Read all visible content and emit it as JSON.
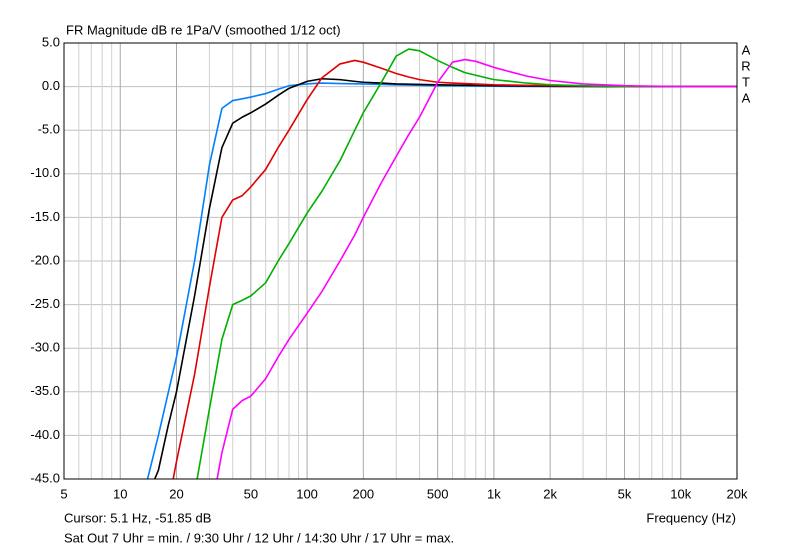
{
  "chart_data": {
    "type": "line",
    "title": "FR Magnitude dB re 1Pa/V (smoothed 1/12 oct)",
    "side_label": [
      "A",
      "R",
      "T",
      "A"
    ],
    "x_label": "Frequency (Hz)",
    "cursor_text": "Cursor: 5.1 Hz, -51.85 dB",
    "note": "Sat Out 7 Uhr = min. / 9:30 Uhr / 12 Uhr / 14:30 Uhr / 17 Uhr = max.",
    "x_log": true,
    "grid": true,
    "xlim": [
      5,
      20000
    ],
    "xticks": [
      5,
      10,
      20,
      50,
      100,
      200,
      500,
      {
        "value": 1000,
        "label": "1k"
      },
      {
        "value": 2000,
        "label": "2k"
      },
      {
        "value": 5000,
        "label": "5k"
      },
      {
        "value": 10000,
        "label": "10k"
      },
      {
        "value": 20000,
        "label": "20k"
      }
    ],
    "x_minor_gridlines": [
      6,
      7,
      8,
      9,
      30,
      40,
      60,
      70,
      80,
      90,
      300,
      400,
      600,
      700,
      800,
      900,
      3000,
      4000,
      6000,
      7000,
      8000,
      9000
    ],
    "ylim": [
      -45,
      5
    ],
    "yticks": [
      {
        "value": 5,
        "label": "5.0"
      },
      {
        "value": 0,
        "label": "0.0"
      },
      {
        "value": -5,
        "label": "-5.0"
      },
      {
        "value": -10,
        "label": "-10.0"
      },
      {
        "value": -15,
        "label": "-15.0"
      },
      {
        "value": -20,
        "label": "-20.0"
      },
      {
        "value": -25,
        "label": "-25.0"
      },
      {
        "value": -30,
        "label": "-30.0"
      },
      {
        "value": -35,
        "label": "-35.0"
      },
      {
        "value": -40,
        "label": "-40.0"
      },
      {
        "value": -45,
        "label": "-45.0"
      }
    ],
    "series": [
      {
        "color": "#0080ff",
        "x": [
          14,
          16,
          20,
          25,
          30,
          35,
          40,
          45,
          50,
          60,
          70,
          80,
          100,
          120,
          150,
          200,
          300,
          500,
          1000,
          2000,
          5000,
          20000
        ],
        "values": [
          -45,
          -40,
          -31,
          -20,
          -9,
          -2.5,
          -1.6,
          -1.4,
          -1.2,
          -0.8,
          -0.3,
          0.1,
          0.3,
          0.4,
          0.35,
          0.3,
          0.2,
          0.1,
          0.05,
          0,
          0,
          0
        ]
      },
      {
        "color": "#000000",
        "x": [
          15.3,
          16,
          18,
          20,
          25,
          30,
          35,
          40,
          45,
          50,
          60,
          70,
          80,
          100,
          120,
          150,
          180,
          200,
          250,
          300,
          500,
          1000,
          2000,
          5000,
          20000
        ],
        "values": [
          -45,
          -44,
          -39,
          -35,
          -24,
          -14,
          -7,
          -4.2,
          -3.5,
          -3,
          -2,
          -1,
          -0.2,
          0.6,
          0.9,
          0.8,
          0.6,
          0.5,
          0.4,
          0.3,
          0.2,
          0.1,
          0.05,
          0,
          0
        ]
      },
      {
        "color": "#e00000",
        "x": [
          19.2,
          20,
          25,
          30,
          35,
          40,
          45,
          50,
          60,
          70,
          80,
          100,
          120,
          150,
          180,
          200,
          250,
          300,
          350,
          400,
          500,
          600,
          1000,
          2000,
          5000,
          20000
        ],
        "values": [
          -45,
          -43,
          -33,
          -23,
          -15,
          -13,
          -12.5,
          -11.5,
          -9.5,
          -7,
          -5,
          -1.5,
          1,
          2.6,
          3,
          2.8,
          2.1,
          1.5,
          1.1,
          0.8,
          0.5,
          0.4,
          0.2,
          0.1,
          0,
          0
        ]
      },
      {
        "color": "#00b000",
        "x": [
          25.8,
          30,
          35,
          40,
          45,
          50,
          60,
          70,
          80,
          100,
          120,
          150,
          180,
          200,
          250,
          300,
          350,
          400,
          500,
          600,
          700,
          800,
          1000,
          1500,
          2000,
          3000,
          5000,
          20000
        ],
        "values": [
          -45,
          -37,
          -29,
          -25,
          -24.5,
          -24,
          -22.5,
          -20,
          -18,
          -14.5,
          -12,
          -8.5,
          -5,
          -3,
          0.5,
          3.5,
          4.3,
          4.1,
          3,
          2.2,
          1.6,
          1.3,
          0.8,
          0.4,
          0.2,
          0.1,
          0,
          0
        ]
      },
      {
        "color": "#ff00ff",
        "x": [
          33,
          35,
          40,
          45,
          50,
          60,
          70,
          80,
          100,
          120,
          150,
          180,
          200,
          250,
          300,
          350,
          400,
          500,
          600,
          700,
          800,
          1000,
          1500,
          2000,
          3000,
          5000,
          10000,
          20000
        ],
        "values": [
          -45,
          -42,
          -37,
          -36,
          -35.5,
          -33.5,
          -31,
          -29,
          -26,
          -23.5,
          -20,
          -17,
          -15,
          -11,
          -8,
          -5.5,
          -3.5,
          0.5,
          2.8,
          3.1,
          2.9,
          2.2,
          1.2,
          0.7,
          0.3,
          0.1,
          0,
          0
        ]
      }
    ]
  }
}
